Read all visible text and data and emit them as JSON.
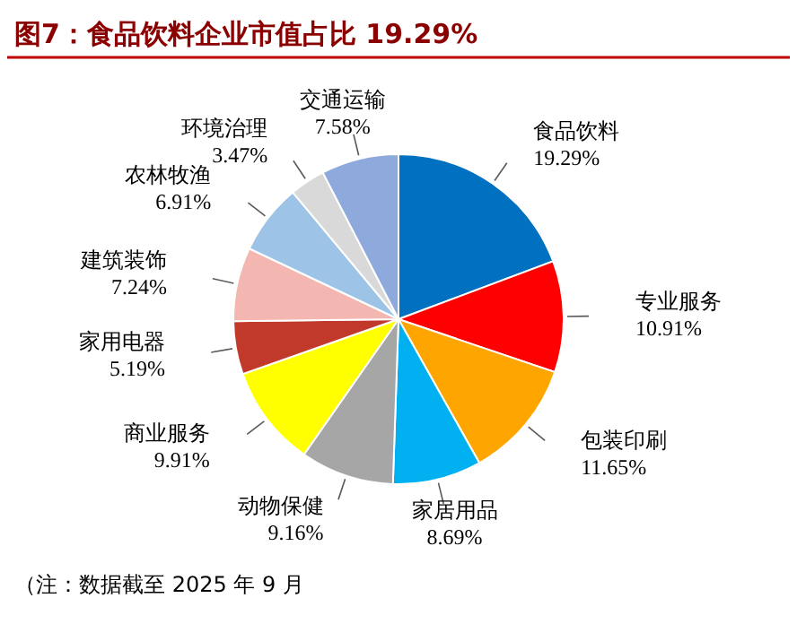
{
  "chart_data": {
    "type": "pie",
    "title": "图7：食品饮料企业市值占比 19.29%",
    "categories": [
      "食品饮料",
      "专业服务",
      "包装印刷",
      "家居用品",
      "动物保健",
      "商业服务",
      "家用电器",
      "建筑装饰",
      "农林牧渔",
      "环境治理",
      "交通运输"
    ],
    "values": [
      19.29,
      10.91,
      11.65,
      8.69,
      9.16,
      9.91,
      5.19,
      7.24,
      6.91,
      3.47,
      7.58
    ],
    "value_labels": [
      "19.29%",
      "10.91%",
      "11.65%",
      "8.69%",
      "9.16%",
      "9.91%",
      "5.19%",
      "7.24%",
      "6.91%",
      "3.47%",
      "7.58%"
    ],
    "colors": [
      "#0070c0",
      "#ff0000",
      "#ffa500",
      "#00b0f0",
      "#a6a6a6",
      "#ffff00",
      "#c0392b",
      "#f4b6b0",
      "#9dc3e6",
      "#d9d9d9",
      "#8ea9db"
    ],
    "annotations": [
      "（注：数据截至 2025 年 9 月"
    ],
    "legend": false
  }
}
